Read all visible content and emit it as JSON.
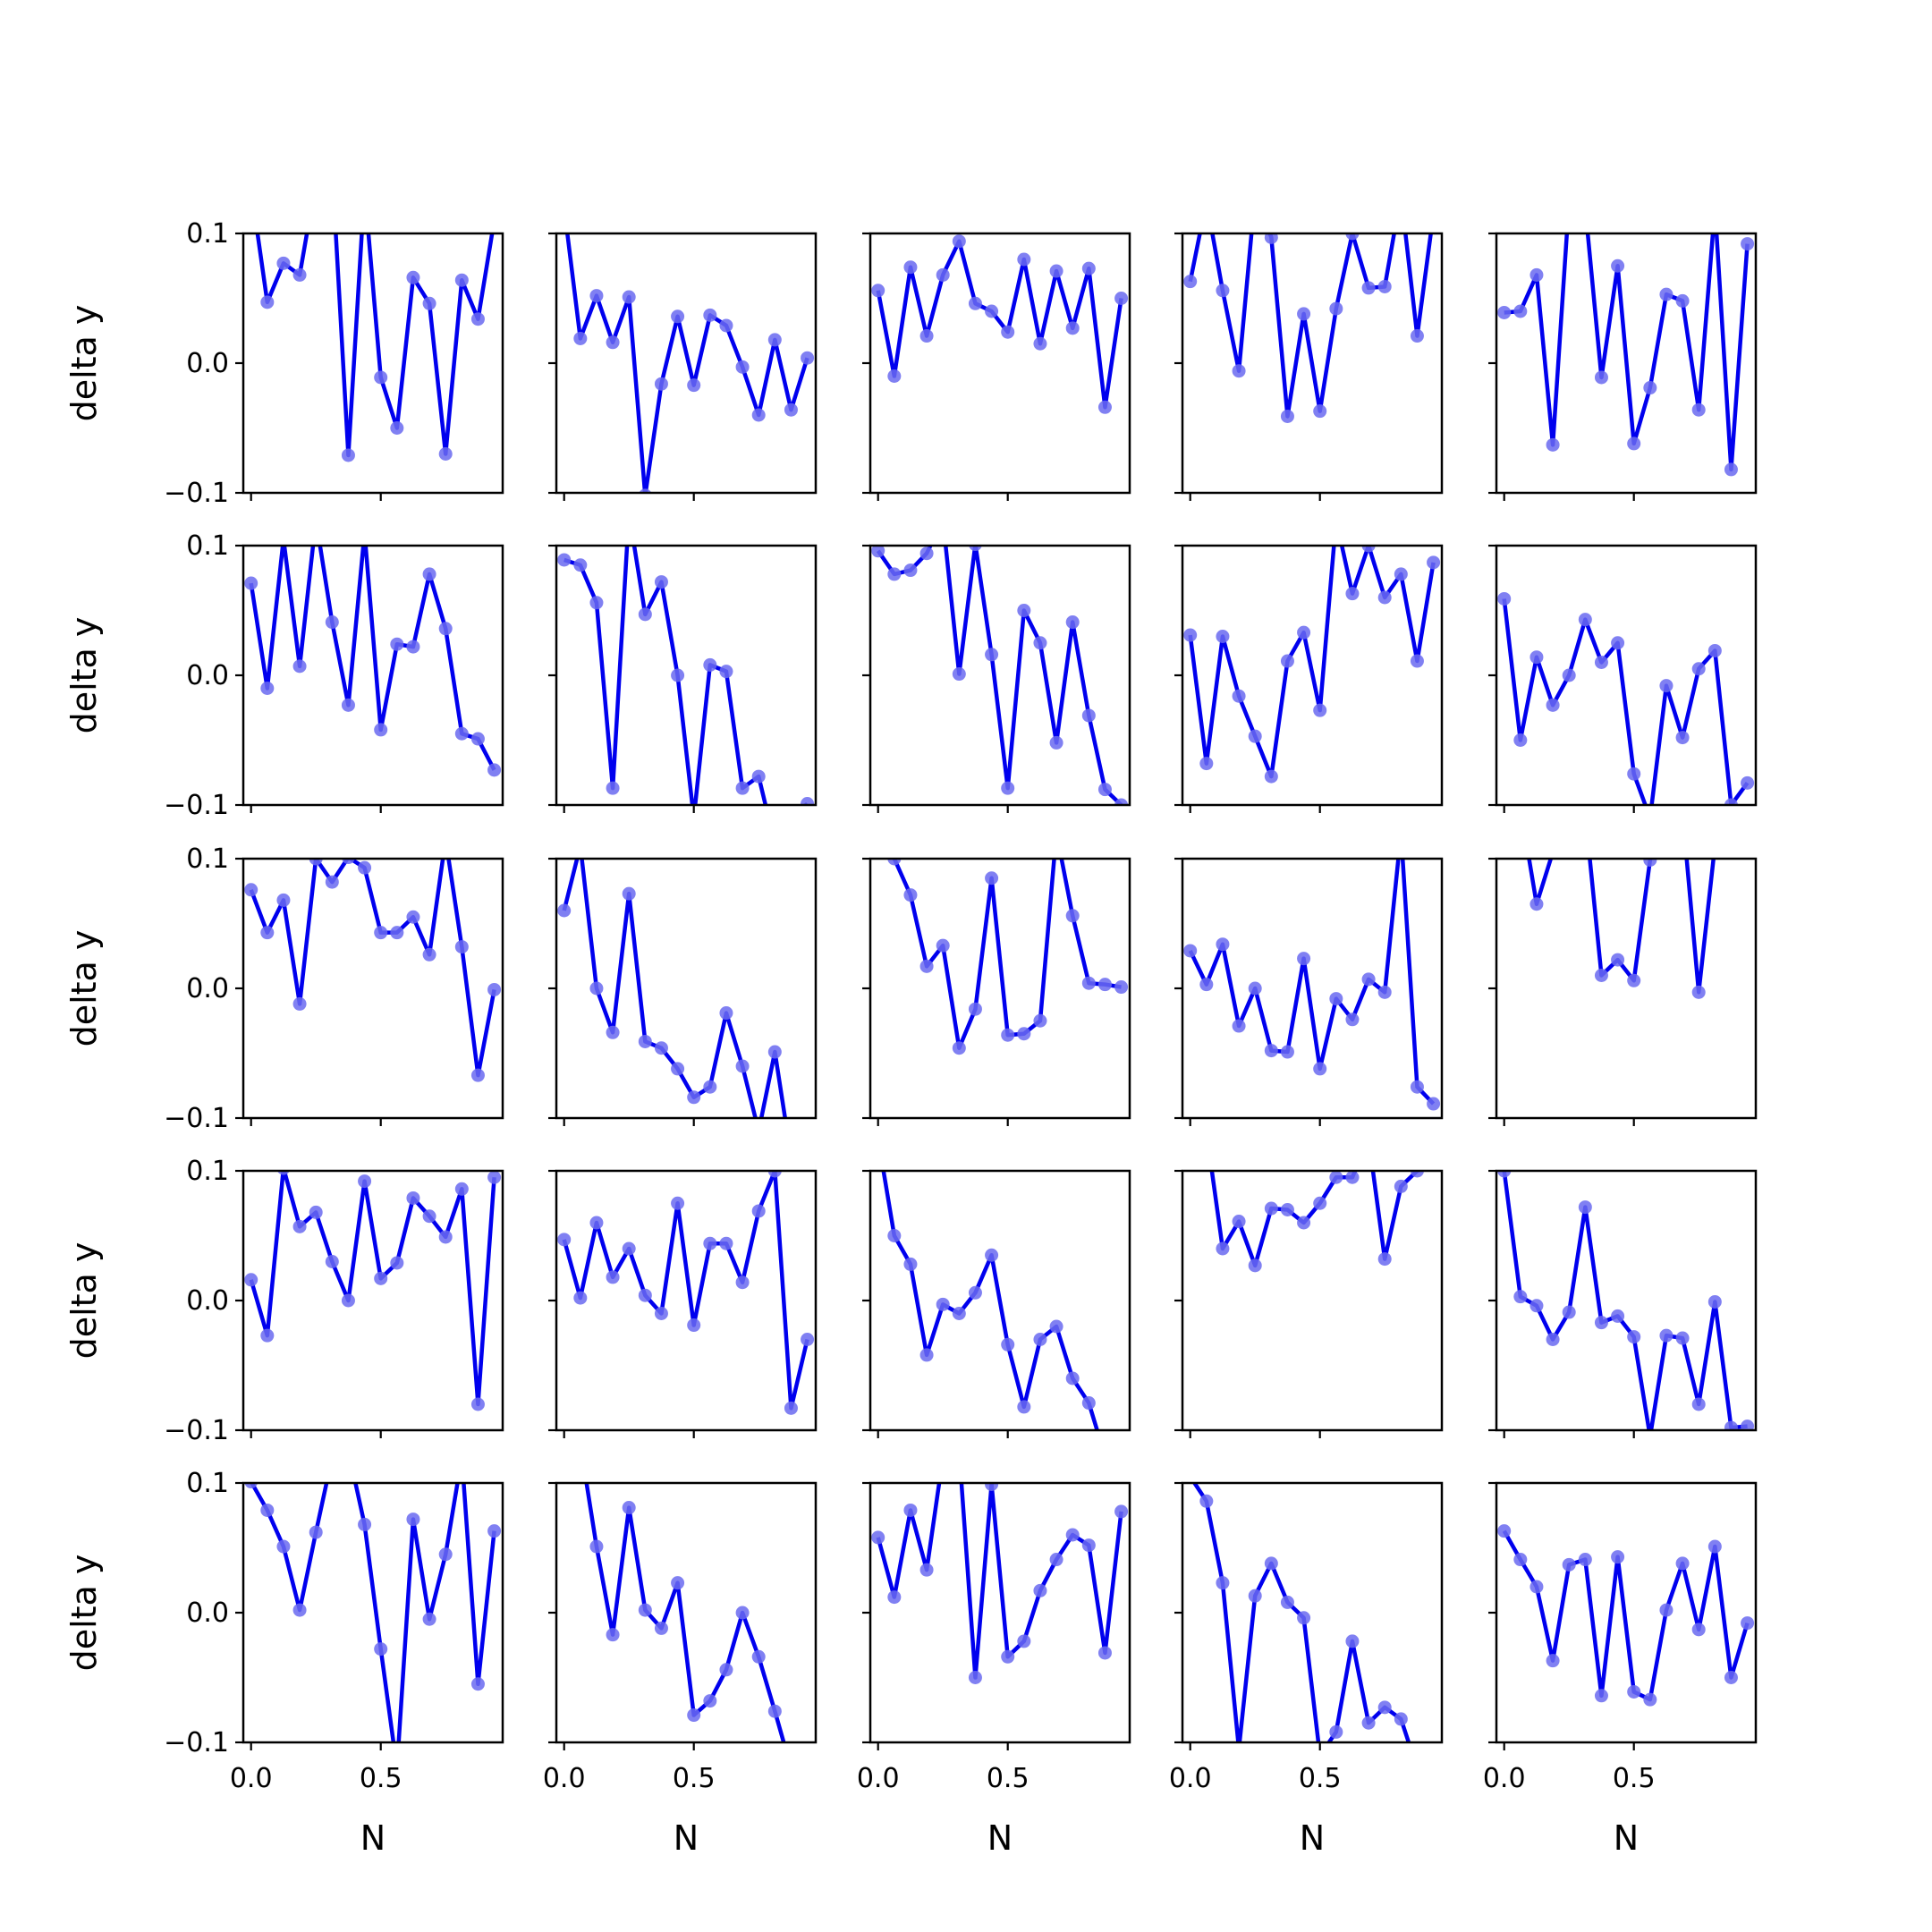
{
  "chart_data": {
    "type": "line",
    "layout": "5x5 grid of line plots",
    "xlabel": "N",
    "ylabel": "delta y",
    "xlim": [
      -0.03,
      0.97
    ],
    "ylim": [
      -0.1,
      0.1
    ],
    "xticks": [
      0.0,
      0.5
    ],
    "xtick_labels": [
      "0.0",
      "0.5"
    ],
    "yticks": [
      -0.1,
      0.0,
      0.1
    ],
    "ytick_labels": [
      "−0.1",
      "0.0",
      "0.1"
    ],
    "grid": false,
    "line_color": "#0000ee",
    "marker_color": "#6a6af0",
    "x": [
      0.0,
      0.0625,
      0.125,
      0.1875,
      0.25,
      0.3125,
      0.375,
      0.4375,
      0.5,
      0.5625,
      0.625,
      0.6875,
      0.75,
      0.8125,
      0.875,
      0.9375
    ],
    "panels": [
      [
        0.135,
        0.047,
        0.077,
        0.068,
        0.14,
        0.15,
        -0.071,
        0.135,
        -0.011,
        -0.05,
        0.066,
        0.046,
        -0.07,
        0.064,
        0.034,
        0.11
      ],
      [
        0.12,
        0.019,
        0.052,
        0.016,
        0.051,
        -0.102,
        -0.016,
        0.036,
        -0.017,
        0.037,
        0.029,
        -0.003,
        -0.04,
        0.018,
        -0.036,
        0.004
      ],
      [
        0.056,
        -0.01,
        0.074,
        0.021,
        0.068,
        0.094,
        0.046,
        0.04,
        0.024,
        0.08,
        0.015,
        0.071,
        0.027,
        0.073,
        -0.034,
        0.05
      ],
      [
        0.063,
        0.125,
        0.056,
        -0.006,
        0.13,
        0.097,
        -0.041,
        0.038,
        -0.037,
        0.042,
        0.1,
        0.058,
        0.059,
        0.13,
        0.021,
        0.115
      ],
      [
        0.039,
        0.04,
        0.068,
        -0.063,
        0.125,
        0.12,
        -0.011,
        0.075,
        -0.062,
        -0.019,
        0.053,
        0.048,
        -0.036,
        0.12,
        -0.082,
        0.092
      ],
      [
        0.071,
        -0.01,
        0.105,
        0.007,
        0.12,
        0.041,
        -0.023,
        0.11,
        -0.042,
        0.024,
        0.022,
        0.078,
        0.036,
        -0.045,
        -0.049,
        -0.073
      ],
      [
        0.089,
        0.085,
        0.056,
        -0.087,
        0.125,
        0.047,
        0.072,
        0.0,
        -0.11,
        0.008,
        0.003,
        -0.087,
        -0.078,
        -0.13,
        -0.11,
        -0.099
      ],
      [
        0.096,
        0.078,
        0.081,
        0.094,
        0.12,
        0.001,
        0.101,
        0.016,
        -0.087,
        0.05,
        0.025,
        -0.052,
        0.041,
        -0.031,
        -0.088,
        -0.1
      ],
      [
        0.031,
        -0.068,
        0.03,
        -0.016,
        -0.047,
        -0.078,
        0.011,
        0.033,
        -0.027,
        0.12,
        0.063,
        0.1,
        0.06,
        0.078,
        0.011,
        0.087
      ],
      [
        0.059,
        -0.05,
        0.014,
        -0.023,
        0.0,
        0.043,
        0.01,
        0.025,
        -0.076,
        -0.11,
        -0.008,
        -0.048,
        0.005,
        0.019,
        -0.1,
        -0.083
      ],
      [
        0.076,
        0.043,
        0.068,
        -0.012,
        0.1,
        0.082,
        0.101,
        0.093,
        0.043,
        0.043,
        0.055,
        0.026,
        0.115,
        0.032,
        -0.067,
        -0.001
      ],
      [
        0.06,
        0.11,
        0.0,
        -0.034,
        0.073,
        -0.041,
        -0.046,
        -0.062,
        -0.084,
        -0.076,
        -0.019,
        -0.06,
        -0.11,
        -0.049,
        -0.13,
        -0.125
      ],
      [
        0.115,
        0.1,
        0.072,
        0.017,
        0.033,
        -0.046,
        -0.016,
        0.085,
        -0.036,
        -0.035,
        -0.025,
        0.12,
        0.056,
        0.004,
        0.003,
        0.001
      ],
      [
        0.029,
        0.003,
        0.034,
        -0.029,
        0.0,
        -0.048,
        -0.049,
        0.023,
        -0.062,
        -0.008,
        -0.024,
        0.007,
        -0.003,
        0.12,
        -0.076,
        -0.089
      ],
      [
        0.135,
        0.14,
        0.065,
        0.105,
        0.12,
        0.135,
        0.01,
        0.022,
        0.006,
        0.099,
        0.13,
        0.135,
        -0.003,
        0.11,
        0.125,
        0.13
      ],
      [
        0.016,
        -0.027,
        0.102,
        0.057,
        0.068,
        0.03,
        0.0,
        0.092,
        0.017,
        0.029,
        0.079,
        0.065,
        0.049,
        0.086,
        -0.08,
        0.095
      ],
      [
        0.047,
        0.002,
        0.06,
        0.018,
        0.04,
        0.004,
        -0.01,
        0.075,
        -0.019,
        0.044,
        0.044,
        0.014,
        0.069,
        0.1,
        -0.083,
        -0.03
      ],
      [
        0.125,
        0.05,
        0.028,
        -0.042,
        -0.003,
        -0.01,
        0.006,
        0.035,
        -0.034,
        -0.082,
        -0.03,
        -0.02,
        -0.06,
        -0.079,
        -0.12,
        -0.125
      ],
      [
        0.125,
        0.13,
        0.04,
        0.061,
        0.027,
        0.071,
        0.07,
        0.06,
        0.075,
        0.095,
        0.095,
        0.125,
        0.032,
        0.088,
        0.1,
        0.105
      ],
      [
        0.1,
        0.003,
        -0.004,
        -0.03,
        -0.009,
        0.072,
        -0.017,
        -0.012,
        -0.028,
        -0.105,
        -0.027,
        -0.029,
        -0.08,
        -0.001,
        -0.098,
        -0.097
      ],
      [
        0.101,
        0.079,
        0.051,
        0.002,
        0.062,
        0.12,
        0.125,
        0.068,
        -0.028,
        -0.12,
        0.072,
        -0.005,
        0.045,
        0.12,
        -0.055,
        0.063
      ],
      [
        0.11,
        0.13,
        0.051,
        -0.017,
        0.081,
        0.002,
        -0.012,
        0.023,
        -0.079,
        -0.068,
        -0.044,
        0.0,
        -0.034,
        -0.076,
        -0.12,
        -0.13
      ],
      [
        0.058,
        0.012,
        0.079,
        0.033,
        0.12,
        0.125,
        -0.05,
        0.099,
        -0.034,
        -0.022,
        0.017,
        0.041,
        0.06,
        0.052,
        -0.031,
        0.078
      ],
      [
        0.105,
        0.086,
        0.023,
        -0.105,
        0.013,
        0.038,
        0.008,
        -0.004,
        -0.11,
        -0.092,
        -0.022,
        -0.085,
        -0.073,
        -0.082,
        -0.12,
        -0.13
      ],
      [
        0.063,
        0.041,
        0.02,
        -0.037,
        0.037,
        0.041,
        -0.064,
        0.043,
        -0.061,
        -0.067,
        0.002,
        0.038,
        -0.013,
        0.051,
        -0.05,
        -0.008
      ]
    ]
  }
}
